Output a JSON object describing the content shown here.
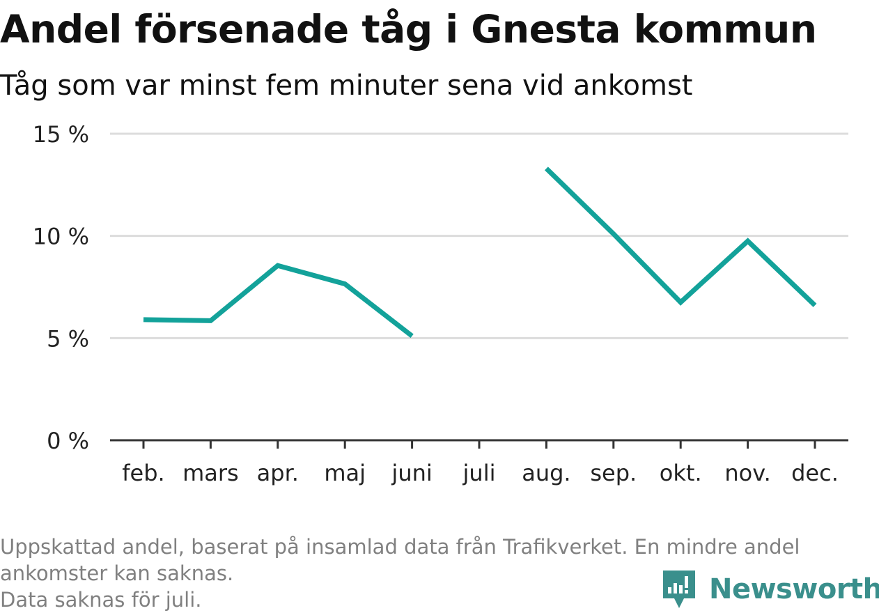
{
  "header": {
    "title": "Andel försenade tåg i Gnesta kommun",
    "subtitle": "Tåg som var minst fem minuter sena vid ankomst"
  },
  "chart_data": {
    "type": "line",
    "categories": [
      "feb.",
      "mars",
      "apr.",
      "maj",
      "juni",
      "juli",
      "aug.",
      "sep.",
      "okt.",
      "nov.",
      "dec."
    ],
    "series": [
      {
        "values": [
          5.9,
          5.85,
          8.55,
          7.65,
          5.1,
          null,
          13.3,
          10.1,
          6.75,
          9.75,
          6.6
        ]
      }
    ],
    "y_ticks": [
      0,
      5,
      10,
      15
    ],
    "y_tick_labels": [
      "0 %",
      "5 %",
      "10 %",
      "15 %"
    ],
    "ylim": [
      0,
      15
    ],
    "grid": true,
    "line_color": "#13a29a"
  },
  "footnote": {
    "line1": "Uppskattad andel, baserat på insamlad data från Trafikverket. En mindre andel",
    "line2": "ankomster kan saknas.",
    "line3": "Data saknas för juli."
  },
  "logo": {
    "text": "Newsworthy",
    "icon": "newsworthy-logo-icon",
    "color": "#3a8f8c"
  }
}
